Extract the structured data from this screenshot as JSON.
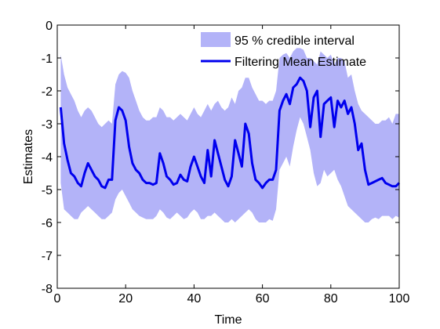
{
  "chart_data": {
    "type": "area",
    "xlabel": "Time",
    "ylabel": "Estimates",
    "xlim": [
      0,
      100
    ],
    "ylim": [
      -8,
      0
    ],
    "x_ticks": [
      "0",
      "20",
      "40",
      "60",
      "80",
      "100"
    ],
    "y_ticks": [
      "0",
      "-1",
      "-2",
      "-3",
      "-4",
      "-5",
      "-6",
      "-7",
      "-8"
    ],
    "legend": {
      "placement": "top-right",
      "entries": [
        {
          "label": "95 % credible interval"
        },
        {
          "label": "Filtering Mean Estimate"
        }
      ]
    },
    "grid": false,
    "colors": {
      "interval_fill": "#b3b3f8",
      "mean_line": "#0000ee",
      "axes": "#000000",
      "background": "#ffffff"
    },
    "series": [
      {
        "name": "95 % credible interval",
        "kind": "band",
        "x": [
          1,
          2,
          3,
          4,
          5,
          6,
          7,
          8,
          9,
          10,
          11,
          12,
          13,
          14,
          15,
          16,
          17,
          18,
          19,
          20,
          21,
          22,
          23,
          24,
          25,
          26,
          27,
          28,
          29,
          30,
          31,
          32,
          33,
          34,
          35,
          36,
          37,
          38,
          39,
          40,
          41,
          42,
          43,
          44,
          45,
          46,
          47,
          48,
          49,
          50,
          51,
          52,
          53,
          54,
          55,
          56,
          57,
          58,
          59,
          60,
          61,
          62,
          63,
          64,
          65,
          66,
          67,
          68,
          69,
          70,
          71,
          72,
          73,
          74,
          75,
          76,
          77,
          78,
          79,
          80,
          81,
          82,
          83,
          84,
          85,
          86,
          87,
          88,
          89,
          90,
          91,
          92,
          93,
          94,
          95,
          96,
          97,
          98,
          99,
          100
        ],
        "upper": [
          -0.9,
          -1.5,
          -1.9,
          -2.1,
          -2.3,
          -2.6,
          -2.8,
          -2.6,
          -2.5,
          -2.6,
          -2.8,
          -3.0,
          -3.1,
          -3.0,
          -2.9,
          -3.0,
          -1.8,
          -1.5,
          -1.4,
          -1.45,
          -1.6,
          -2.0,
          -2.3,
          -2.6,
          -2.8,
          -2.9,
          -2.9,
          -2.8,
          -2.8,
          -2.5,
          -2.6,
          -2.8,
          -2.8,
          -2.9,
          -2.8,
          -2.7,
          -2.8,
          -2.9,
          -2.7,
          -2.5,
          -2.7,
          -2.8,
          -2.6,
          -2.4,
          -2.6,
          -2.4,
          -2.3,
          -2.5,
          -2.6,
          -2.5,
          -2.2,
          -2.4,
          -2.0,
          -1.9,
          -1.6,
          -1.6,
          -1.9,
          -2.1,
          -2.3,
          -2.3,
          -2.4,
          -2.3,
          -2.3,
          -2.0,
          -1.0,
          -0.9,
          -0.85,
          -1.0,
          -0.8,
          -0.7,
          -0.7,
          -0.75,
          -1.0,
          -1.0,
          -1.1,
          -1.2,
          -0.8,
          -0.9,
          -1.0,
          -0.9,
          -1.2,
          -1.0,
          -1.0,
          -1.1,
          -1.6,
          -1.5,
          -2.0,
          -2.4,
          -2.6,
          -2.7,
          -2.8,
          -2.9,
          -3.0,
          -3.0,
          -2.9,
          -2.9,
          -2.8,
          -3.0,
          -2.7,
          -2.7
        ],
        "lower": [
          -4.8,
          -5.6,
          -5.7,
          -5.8,
          -5.9,
          -5.9,
          -5.7,
          -5.6,
          -5.5,
          -5.6,
          -5.7,
          -5.8,
          -5.9,
          -5.9,
          -5.8,
          -5.7,
          -5.3,
          -5.1,
          -5.0,
          -5.2,
          -5.4,
          -5.6,
          -5.7,
          -5.8,
          -5.85,
          -5.9,
          -5.9,
          -5.9,
          -5.8,
          -5.6,
          -5.7,
          -5.85,
          -5.9,
          -5.8,
          -5.7,
          -5.8,
          -5.9,
          -5.85,
          -5.7,
          -5.6,
          -5.7,
          -5.9,
          -5.9,
          -5.8,
          -5.8,
          -5.7,
          -5.8,
          -5.9,
          -6.0,
          -6.0,
          -5.9,
          -6.0,
          -5.9,
          -5.8,
          -5.7,
          -5.6,
          -5.7,
          -5.9,
          -6.0,
          -6.0,
          -6.0,
          -5.9,
          -5.95,
          -5.6,
          -4.4,
          -4.2,
          -4.0,
          -4.3,
          -3.7,
          -3.2,
          -2.8,
          -3.0,
          -3.4,
          -3.8,
          -4.5,
          -4.9,
          -4.8,
          -4.4,
          -4.6,
          -4.5,
          -4.4,
          -4.7,
          -4.9,
          -5.2,
          -5.5,
          -5.6,
          -5.7,
          -5.8,
          -5.9,
          -6.0,
          -6.0,
          -5.9,
          -5.85,
          -5.9,
          -5.8,
          -5.8,
          -5.8,
          -5.9,
          -5.8,
          -5.85
        ]
      },
      {
        "name": "Filtering Mean Estimate",
        "kind": "line",
        "x": [
          1,
          2,
          3,
          4,
          5,
          6,
          7,
          8,
          9,
          10,
          11,
          12,
          13,
          14,
          15,
          16,
          17,
          18,
          19,
          20,
          21,
          22,
          23,
          24,
          25,
          26,
          27,
          28,
          29,
          30,
          31,
          32,
          33,
          34,
          35,
          36,
          37,
          38,
          39,
          40,
          41,
          42,
          43,
          44,
          45,
          46,
          47,
          48,
          49,
          50,
          51,
          52,
          53,
          54,
          55,
          56,
          57,
          58,
          59,
          60,
          61,
          62,
          63,
          64,
          65,
          66,
          67,
          68,
          69,
          70,
          71,
          72,
          73,
          74,
          75,
          76,
          77,
          78,
          79,
          80,
          81,
          82,
          83,
          84,
          85,
          86,
          87,
          88,
          89,
          90,
          91,
          92,
          93,
          94,
          95,
          96,
          97,
          98,
          99,
          100
        ],
        "y": [
          -2.5,
          -3.6,
          -4.1,
          -4.5,
          -4.6,
          -4.8,
          -4.9,
          -4.5,
          -4.2,
          -4.4,
          -4.6,
          -4.7,
          -4.9,
          -4.95,
          -4.7,
          -4.7,
          -2.9,
          -2.5,
          -2.6,
          -2.9,
          -3.7,
          -4.2,
          -4.4,
          -4.5,
          -4.7,
          -4.8,
          -4.8,
          -4.85,
          -4.8,
          -3.9,
          -4.2,
          -4.6,
          -4.7,
          -4.85,
          -4.8,
          -4.55,
          -4.7,
          -4.75,
          -4.3,
          -4.0,
          -4.3,
          -4.6,
          -4.8,
          -3.8,
          -4.6,
          -3.5,
          -3.9,
          -4.3,
          -4.7,
          -4.9,
          -4.6,
          -3.5,
          -3.9,
          -4.3,
          -3.0,
          -3.3,
          -4.2,
          -4.7,
          -4.8,
          -4.95,
          -4.8,
          -4.7,
          -4.7,
          -4.4,
          -2.6,
          -2.3,
          -2.1,
          -2.4,
          -1.9,
          -1.8,
          -1.6,
          -1.7,
          -2.0,
          -3.1,
          -2.2,
          -2.0,
          -3.4,
          -2.4,
          -2.3,
          -2.2,
          -3.1,
          -2.3,
          -2.5,
          -2.3,
          -2.7,
          -2.5,
          -3.0,
          -3.8,
          -3.6,
          -4.4,
          -4.85,
          -4.8,
          -4.75,
          -4.7,
          -4.65,
          -4.8,
          -4.85,
          -4.9,
          -4.9,
          -4.8
        ]
      }
    ]
  }
}
